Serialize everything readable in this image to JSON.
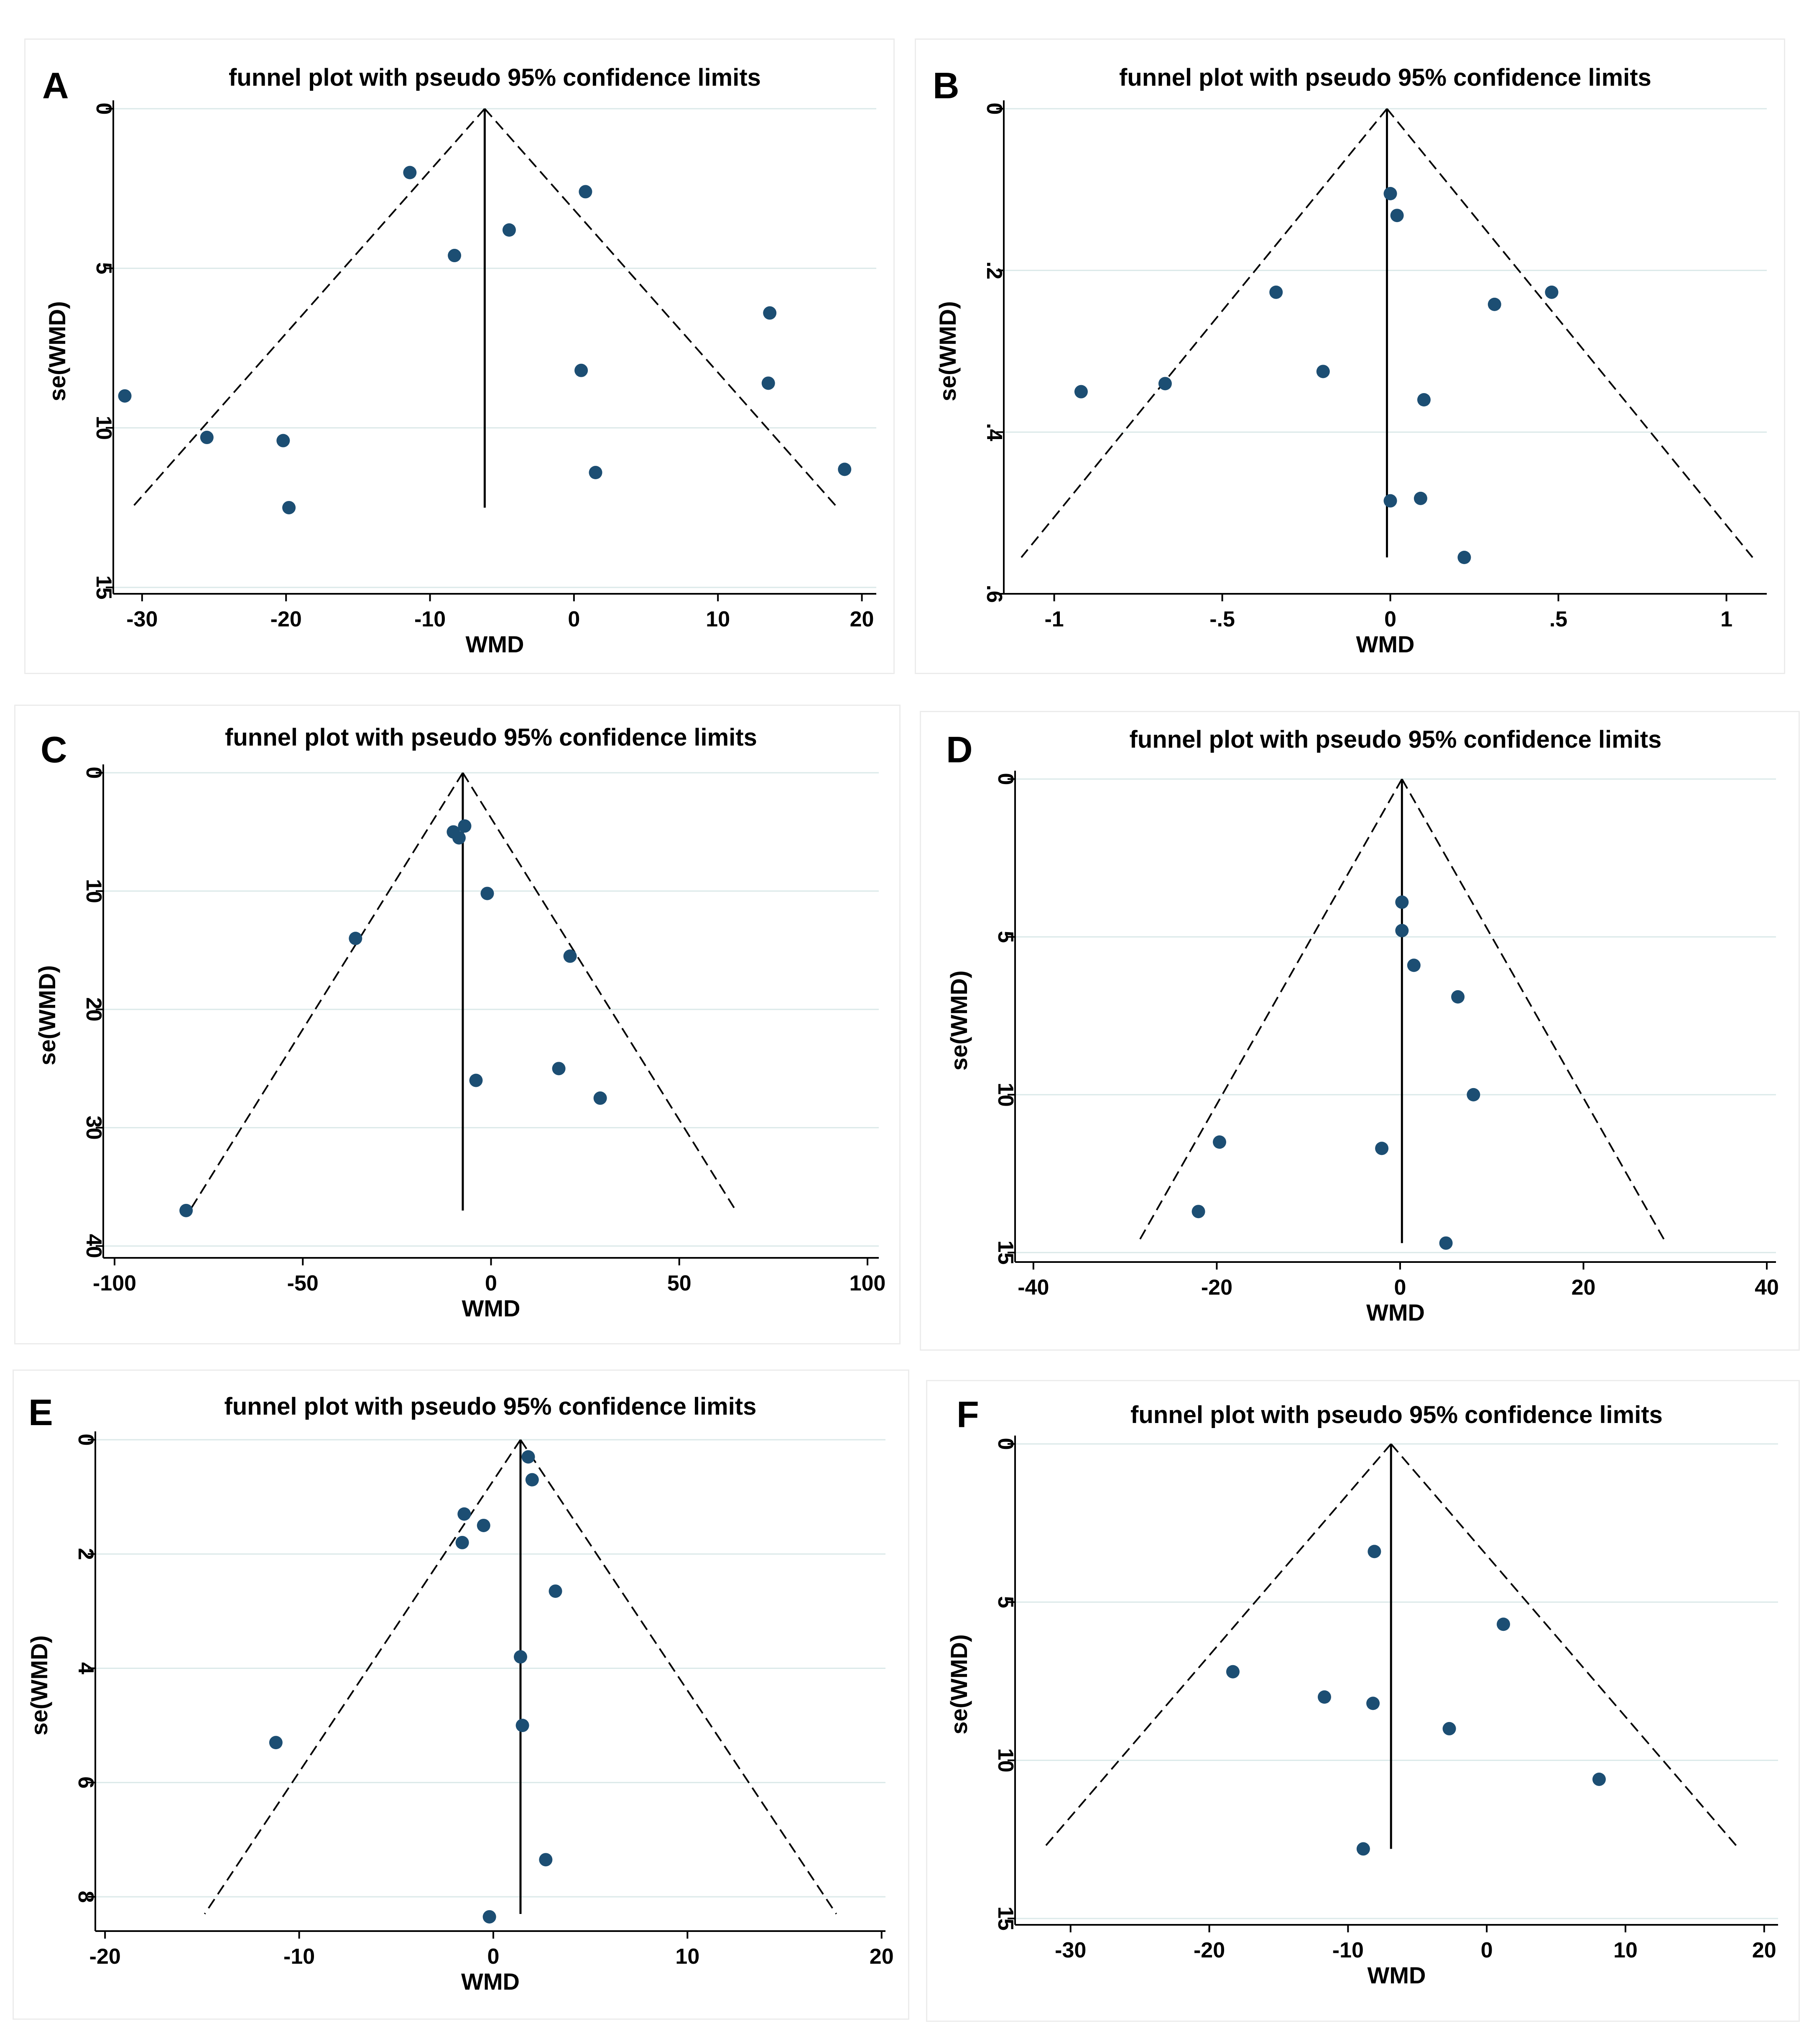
{
  "chart_data": [
    {
      "id": "A",
      "label": "A",
      "type": "scatter",
      "title": "funnel plot with pseudo 95% confidence limits",
      "xlabel": "WMD",
      "ylabel": "se(WMD)",
      "xlim": [
        -32,
        21
      ],
      "ylim": [
        0,
        15.2
      ],
      "y_reversed": true,
      "xticks": [
        -30,
        -20,
        -10,
        0,
        10,
        20
      ],
      "xtick_labels": [
        "-30",
        "-20",
        "-10",
        "0",
        "10",
        "20"
      ],
      "yticks": [
        0,
        5,
        10,
        15
      ],
      "ytick_labels": [
        "0",
        "5",
        "10",
        "15"
      ],
      "pooled_estimate": -6.2,
      "funnel_max_se": 12.5,
      "points": [
        {
          "x": -31.2,
          "y": 9.0
        },
        {
          "x": -25.5,
          "y": 10.3
        },
        {
          "x": -20.2,
          "y": 10.4
        },
        {
          "x": -19.8,
          "y": 12.5
        },
        {
          "x": -11.4,
          "y": 2.0
        },
        {
          "x": -8.3,
          "y": 4.6
        },
        {
          "x": -4.5,
          "y": 3.8
        },
        {
          "x": 0.8,
          "y": 2.6
        },
        {
          "x": 0.5,
          "y": 8.2
        },
        {
          "x": 1.5,
          "y": 11.4
        },
        {
          "x": 13.6,
          "y": 6.4
        },
        {
          "x": 13.5,
          "y": 8.6
        },
        {
          "x": 18.8,
          "y": 11.3
        }
      ]
    },
    {
      "id": "B",
      "label": "B",
      "type": "scatter",
      "title": "funnel plot with pseudo 95% confidence limits",
      "xlabel": "WMD",
      "ylabel": "se(WMD)",
      "xlim": [
        -1.15,
        1.12
      ],
      "ylim": [
        0,
        0.6
      ],
      "y_reversed": true,
      "xticks": [
        -1,
        -0.5,
        0,
        0.5,
        1
      ],
      "xtick_labels": [
        "-1",
        "-.5",
        "0",
        ".5",
        "1"
      ],
      "yticks": [
        0,
        0.2,
        0.4,
        0.6
      ],
      "ytick_labels": [
        "0",
        ".2",
        ".4",
        ".6"
      ],
      "pooled_estimate": -0.01,
      "funnel_max_se": 0.555,
      "points": [
        {
          "x": -0.92,
          "y": 0.35
        },
        {
          "x": -0.67,
          "y": 0.34
        },
        {
          "x": -0.34,
          "y": 0.227
        },
        {
          "x": -0.2,
          "y": 0.325
        },
        {
          "x": 0.0,
          "y": 0.105
        },
        {
          "x": 0.02,
          "y": 0.132
        },
        {
          "x": 0.1,
          "y": 0.36
        },
        {
          "x": 0.0,
          "y": 0.485
        },
        {
          "x": 0.09,
          "y": 0.482
        },
        {
          "x": 0.22,
          "y": 0.555
        },
        {
          "x": 0.31,
          "y": 0.242
        },
        {
          "x": 0.48,
          "y": 0.227
        }
      ]
    },
    {
      "id": "C",
      "label": "C",
      "type": "scatter",
      "title": "funnel plot with pseudo 95% confidence limits",
      "xlabel": "WMD",
      "ylabel": "se(WMD)",
      "xlim": [
        -103,
        103
      ],
      "ylim": [
        0,
        41
      ],
      "y_reversed": true,
      "xticks": [
        -100,
        -50,
        0,
        50,
        100
      ],
      "xtick_labels": [
        "-100",
        "-50",
        "0",
        "50",
        "100"
      ],
      "yticks": [
        0,
        10,
        20,
        30,
        40
      ],
      "ytick_labels": [
        "0",
        "10",
        "20",
        "30",
        "40"
      ],
      "pooled_estimate": -7.5,
      "funnel_max_se": 37,
      "points": [
        {
          "x": -81,
          "y": 37.0
        },
        {
          "x": -36,
          "y": 14.0
        },
        {
          "x": -10,
          "y": 5.0
        },
        {
          "x": -8.5,
          "y": 5.5
        },
        {
          "x": -7,
          "y": 4.5
        },
        {
          "x": -1,
          "y": 10.2
        },
        {
          "x": -4,
          "y": 26.0
        },
        {
          "x": 18,
          "y": 25.0
        },
        {
          "x": 21,
          "y": 15.5
        },
        {
          "x": 29,
          "y": 27.5
        }
      ]
    },
    {
      "id": "D",
      "label": "D",
      "type": "scatter",
      "title": "funnel plot with pseudo 95% confidence limits",
      "xlabel": "WMD",
      "ylabel": "se(WMD)",
      "xlim": [
        -42,
        41
      ],
      "ylim": [
        0,
        15.3
      ],
      "y_reversed": true,
      "xticks": [
        -40,
        -20,
        0,
        20,
        40
      ],
      "xtick_labels": [
        "-40",
        "-20",
        "0",
        "20",
        "40"
      ],
      "yticks": [
        0,
        5,
        10,
        15
      ],
      "ytick_labels": [
        "0",
        "5",
        "10",
        "15"
      ],
      "pooled_estimate": 0.2,
      "funnel_max_se": 14.7,
      "points": [
        {
          "x": -22,
          "y": 13.7
        },
        {
          "x": -19.7,
          "y": 11.5
        },
        {
          "x": -2,
          "y": 11.7
        },
        {
          "x": 0.2,
          "y": 3.9
        },
        {
          "x": 0.2,
          "y": 4.8
        },
        {
          "x": 1.5,
          "y": 5.9
        },
        {
          "x": 6.3,
          "y": 6.9
        },
        {
          "x": 8,
          "y": 10.0
        },
        {
          "x": 5,
          "y": 14.7
        }
      ]
    },
    {
      "id": "E",
      "label": "E",
      "type": "scatter",
      "title": "funnel plot with pseudo 95% confidence limits",
      "xlabel": "WMD",
      "ylabel": "se(WMD)",
      "xlim": [
        -20.5,
        20.2
      ],
      "ylim": [
        0,
        8.6
      ],
      "y_reversed": true,
      "xticks": [
        -20,
        -10,
        0,
        10,
        20
      ],
      "xtick_labels": [
        "-20",
        "-10",
        "0",
        "10",
        "20"
      ],
      "yticks": [
        0,
        2,
        4,
        6,
        8
      ],
      "ytick_labels": [
        "0",
        "2",
        "4",
        "6",
        "8"
      ],
      "pooled_estimate": 1.4,
      "funnel_max_se": 8.3,
      "points": [
        {
          "x": -11.2,
          "y": 5.3
        },
        {
          "x": -1.5,
          "y": 1.3
        },
        {
          "x": -1.6,
          "y": 1.8
        },
        {
          "x": -0.5,
          "y": 1.5
        },
        {
          "x": 1.8,
          "y": 0.3
        },
        {
          "x": 2.0,
          "y": 0.7
        },
        {
          "x": 3.2,
          "y": 2.65
        },
        {
          "x": 1.4,
          "y": 3.8
        },
        {
          "x": 1.5,
          "y": 5.0
        },
        {
          "x": 2.7,
          "y": 7.35
        },
        {
          "x": -0.2,
          "y": 8.35
        }
      ]
    },
    {
      "id": "F",
      "label": "F",
      "type": "scatter",
      "title": "funnel plot with pseudo 95% confidence limits",
      "xlabel": "WMD",
      "ylabel": "se(WMD)",
      "xlim": [
        -34,
        21
      ],
      "ylim": [
        0,
        15.2
      ],
      "y_reversed": true,
      "xticks": [
        -30,
        -20,
        -10,
        0,
        10,
        20
      ],
      "xtick_labels": [
        "-30",
        "-20",
        "-10",
        "0",
        "10",
        "20"
      ],
      "yticks": [
        0,
        5,
        10,
        15
      ],
      "ytick_labels": [
        "0",
        "5",
        "10",
        "15"
      ],
      "pooled_estimate": -6.9,
      "funnel_max_se": 12.8,
      "points": [
        {
          "x": -18.3,
          "y": 7.2
        },
        {
          "x": -11.7,
          "y": 8.0
        },
        {
          "x": -8.1,
          "y": 3.4
        },
        {
          "x": -8.2,
          "y": 8.2
        },
        {
          "x": -8.9,
          "y": 12.8
        },
        {
          "x": -2.7,
          "y": 9.0
        },
        {
          "x": 1.2,
          "y": 5.7
        },
        {
          "x": 8.1,
          "y": 10.6
        }
      ]
    }
  ]
}
